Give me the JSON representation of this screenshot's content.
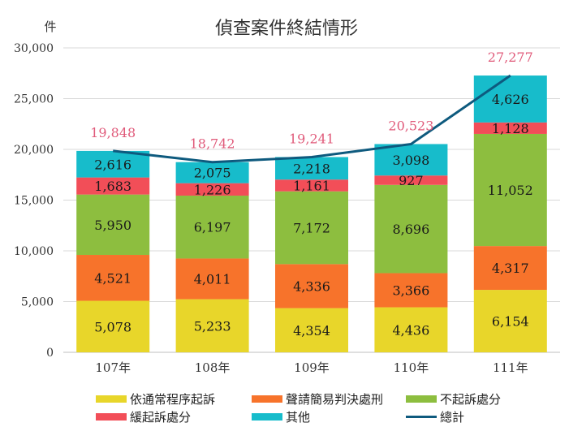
{
  "chart_data": {
    "type": "bar",
    "stacked": true,
    "title": "偵查案件終結情形",
    "ylabel": "件",
    "ylim": [
      0,
      30000
    ],
    "yticks": [
      "0",
      "5,000",
      "10,000",
      "15,000",
      "20,000",
      "25,000",
      "30,000"
    ],
    "grid": true,
    "categories": [
      "107年",
      "108年",
      "109年",
      "110年",
      "111年"
    ],
    "series": [
      {
        "name": "依通常程序起訴",
        "color": "#e8d62a",
        "values": [
          5078,
          5233,
          4354,
          4436,
          6154
        ],
        "labels": [
          "5,078",
          "5,233",
          "4,354",
          "4,436",
          "6,154"
        ]
      },
      {
        "name": "聲請簡易判決處刑",
        "color": "#f7732b",
        "values": [
          4521,
          4011,
          4336,
          3366,
          4317
        ],
        "labels": [
          "4,521",
          "4,011",
          "4,336",
          "3,366",
          "4,317"
        ]
      },
      {
        "name": "不起訴處分",
        "color": "#8dbe3f",
        "values": [
          5950,
          6197,
          7172,
          8696,
          11052
        ],
        "labels": [
          "5,950",
          "6,197",
          "7,172",
          "8,696",
          "11,052"
        ]
      },
      {
        "name": "緩起訴處分",
        "color": "#f24e58",
        "values": [
          1683,
          1226,
          1161,
          927,
          1128
        ],
        "labels": [
          "1,683",
          "1,226",
          "1,161",
          "927",
          "1,128"
        ]
      },
      {
        "name": "其他",
        "color": "#17bccb",
        "values": [
          2616,
          2075,
          2218,
          3098,
          4626
        ],
        "labels": [
          "2,616",
          "2,075",
          "2,218",
          "3,098",
          "4,626"
        ]
      }
    ],
    "line": {
      "name": "總計",
      "color": "#0e5a7e",
      "values": [
        19848,
        18742,
        19241,
        20523,
        27277
      ],
      "labels": [
        "19,848",
        "18,742",
        "19,241",
        "20,523",
        "27,277"
      ],
      "label_color": "#e05a7a"
    },
    "legend_position": "bottom"
  }
}
